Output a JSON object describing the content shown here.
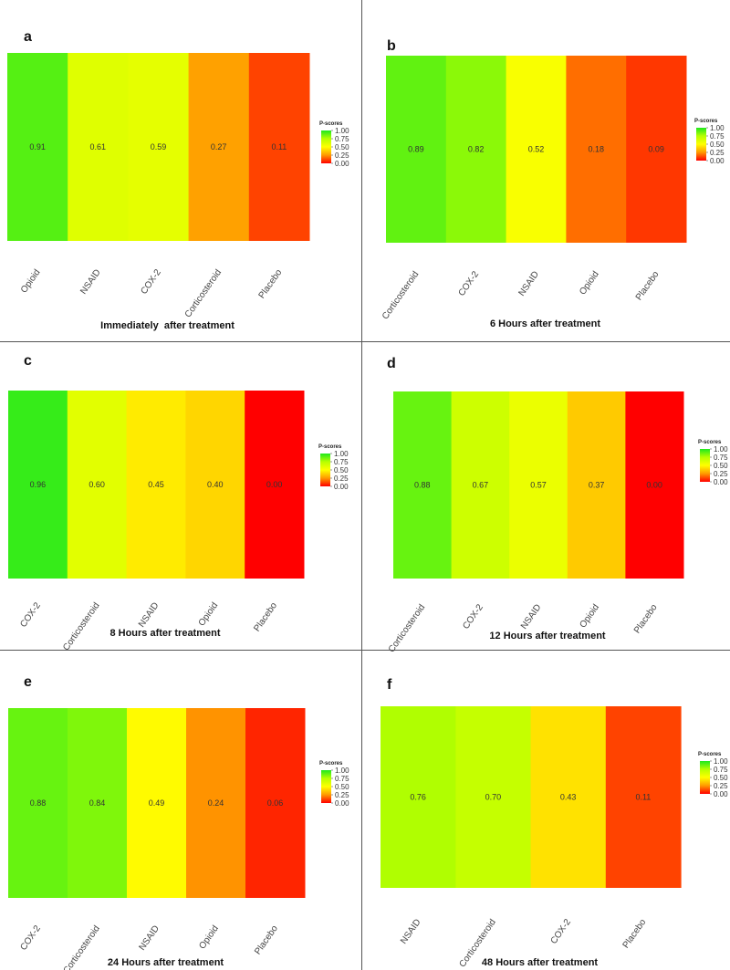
{
  "scale": {
    "title": "P-scores",
    "ticks": [
      "1.00",
      "0.75",
      "0.50",
      "0.25",
      "0.00"
    ],
    "colors": [
      "#1ee81e",
      "#b6ff00",
      "#ffff00",
      "#ff9900",
      "#ff0000"
    ]
  },
  "chart_data": [
    {
      "panel": "a",
      "type": "heatmap",
      "categories": [
        "Opioid",
        "NSAID",
        "COX-2",
        "Corticosteroid",
        "Placebo"
      ],
      "values": [
        0.91,
        0.61,
        0.59,
        0.27,
        0.11
      ],
      "labels": [
        "0.91",
        "0.61",
        "0.59",
        "0.27",
        "0.11"
      ],
      "caption": "Immediately  after treatment"
    },
    {
      "panel": "b",
      "type": "heatmap",
      "categories": [
        "Corticosteroid",
        "COX-2",
        "NSAID",
        "Opioid",
        "Placebo"
      ],
      "values": [
        0.89,
        0.82,
        0.52,
        0.18,
        0.09
      ],
      "labels": [
        "0.89",
        "0.82",
        "0.52",
        "0.18",
        "0.09"
      ],
      "caption": "6 Hours after treatment"
    },
    {
      "panel": "c",
      "type": "heatmap",
      "categories": [
        "COX-2",
        "Corticosteroid",
        "NSAID",
        "Opioid",
        "Placebo"
      ],
      "values": [
        0.96,
        0.6,
        0.45,
        0.4,
        0.0
      ],
      "labels": [
        "0.96",
        "0.60",
        "0.45",
        "0.40",
        "0.00"
      ],
      "caption": "8 Hours after treatment"
    },
    {
      "panel": "d",
      "type": "heatmap",
      "categories": [
        "Corticosteroid",
        "COX-2",
        "NSAID",
        "Opioid",
        "Placebo"
      ],
      "values": [
        0.88,
        0.67,
        0.57,
        0.37,
        0.0
      ],
      "labels": [
        "0.88",
        "0.67",
        "0.57",
        "0.37",
        "0.00"
      ],
      "caption": "12 Hours after treatment"
    },
    {
      "panel": "e",
      "type": "heatmap",
      "categories": [
        "COX-2",
        "Corticosteroid",
        "NSAID",
        "Opioid",
        "Placebo"
      ],
      "values": [
        0.88,
        0.84,
        0.49,
        0.24,
        0.06
      ],
      "labels": [
        "0.88",
        "0.84",
        "0.49",
        "0.24",
        "0.06"
      ],
      "caption": "24 Hours after treatment"
    },
    {
      "panel": "f",
      "type": "heatmap",
      "categories": [
        "NSAID",
        "Corticosteroid",
        "COX-2",
        "Placebo"
      ],
      "values": [
        0.76,
        0.7,
        0.43,
        0.11
      ],
      "labels": [
        "0.76",
        "0.70",
        "0.43",
        "0.11"
      ],
      "caption": "48 Hours after treatment"
    }
  ]
}
